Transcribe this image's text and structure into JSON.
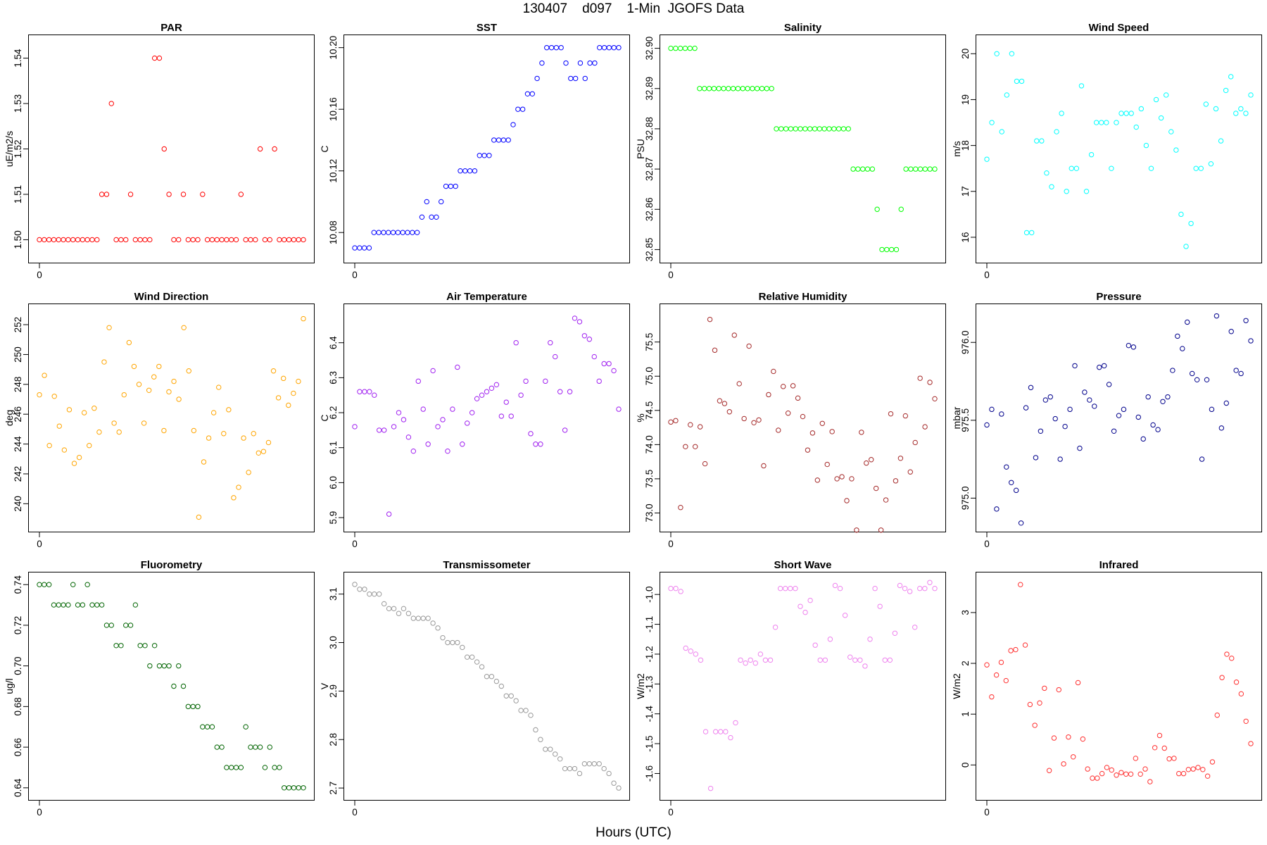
{
  "figure": {
    "title": "130407    d097    1-Min  JGOFS Data",
    "xlabel": "Hours (UTC)",
    "xtick_label": "0"
  },
  "chart_data": [
    {
      "type": "scatter",
      "title": "PAR",
      "ylabel": "uE/m2/s",
      "color": "#ff0000",
      "ylim": [
        1.4965,
        1.5435
      ],
      "yticks": [
        1.5,
        1.51,
        1.52,
        1.53,
        1.54
      ],
      "ytick_labels": [
        "1.50",
        "1.51",
        "1.52",
        "1.53",
        "1.54"
      ],
      "values": [
        1.5,
        1.5,
        1.5,
        1.5,
        1.5,
        1.5,
        1.5,
        1.5,
        1.5,
        1.5,
        1.5,
        1.5,
        1.5,
        1.51,
        1.51,
        1.53,
        1.5,
        1.5,
        1.5,
        1.51,
        1.5,
        1.5,
        1.5,
        1.5,
        1.54,
        1.54,
        1.52,
        1.51,
        1.5,
        1.5,
        1.51,
        1.5,
        1.5,
        1.5,
        1.51,
        1.5,
        1.5,
        1.5,
        1.5,
        1.5,
        1.5,
        1.5,
        1.51,
        1.5,
        1.5,
        1.5,
        1.52,
        1.5,
        1.5,
        1.52,
        1.5,
        1.5,
        1.5,
        1.5,
        1.5,
        1.5
      ]
    },
    {
      "type": "scatter",
      "title": "SST",
      "ylabel": "C",
      "color": "#0000ff",
      "ylim": [
        10.065,
        10.2035
      ],
      "yticks": [
        10.08,
        10.12,
        10.16,
        10.2
      ],
      "ytick_labels": [
        "10.08",
        "10.12",
        "10.16",
        "10.20"
      ],
      "values": [
        10.07,
        10.07,
        10.07,
        10.07,
        10.08,
        10.08,
        10.08,
        10.08,
        10.08,
        10.08,
        10.08,
        10.08,
        10.08,
        10.08,
        10.09,
        10.1,
        10.09,
        10.09,
        10.1,
        10.11,
        10.11,
        10.11,
        10.12,
        10.12,
        10.12,
        10.12,
        10.13,
        10.13,
        10.13,
        10.14,
        10.14,
        10.14,
        10.14,
        10.15,
        10.16,
        10.16,
        10.17,
        10.17,
        10.18,
        10.19,
        10.2,
        10.2,
        10.2,
        10.2,
        10.19,
        10.18,
        10.18,
        10.19,
        10.18,
        10.19,
        10.19,
        10.2,
        10.2,
        10.2,
        10.2,
        10.2
      ]
    },
    {
      "type": "scatter",
      "title": "Salinity",
      "ylabel": "PSU",
      "color": "#00ff00",
      "ylim": [
        32.8485,
        32.9015
      ],
      "yticks": [
        32.85,
        32.86,
        32.87,
        32.88,
        32.89,
        32.9
      ],
      "ytick_labels": [
        "32.85",
        "32.86",
        "32.87",
        "32.88",
        "32.89",
        "32.90"
      ],
      "values": [
        32.9,
        32.9,
        32.9,
        32.9,
        32.9,
        32.9,
        32.89,
        32.89,
        32.89,
        32.89,
        32.89,
        32.89,
        32.89,
        32.89,
        32.89,
        32.89,
        32.89,
        32.89,
        32.89,
        32.89,
        32.89,
        32.89,
        32.88,
        32.88,
        32.88,
        32.88,
        32.88,
        32.88,
        32.88,
        32.88,
        32.88,
        32.88,
        32.88,
        32.88,
        32.88,
        32.88,
        32.88,
        32.88,
        32.87,
        32.87,
        32.87,
        32.87,
        32.87,
        32.86,
        32.85,
        32.85,
        32.85,
        32.85,
        32.86,
        32.87,
        32.87,
        32.87,
        32.87,
        32.87,
        32.87,
        32.87
      ]
    },
    {
      "type": "scatter",
      "title": "Wind Speed",
      "ylabel": "m/s",
      "color": "#00ffff",
      "ylim": [
        15.6,
        20.25
      ],
      "yticks": [
        16,
        17,
        18,
        19,
        20
      ],
      "ytick_labels": [
        "16",
        "17",
        "18",
        "19",
        "20"
      ],
      "values": [
        17.7,
        18.5,
        20.0,
        18.3,
        19.1,
        20.0,
        19.4,
        19.4,
        16.1,
        16.1,
        18.1,
        18.1,
        17.4,
        17.1,
        18.3,
        18.7,
        17.0,
        17.5,
        17.5,
        19.3,
        17.0,
        17.8,
        18.5,
        18.5,
        18.5,
        17.5,
        18.5,
        18.7,
        18.7,
        18.7,
        18.4,
        18.8,
        18.0,
        17.5,
        19.0,
        18.6,
        19.1,
        18.3,
        17.9,
        16.5,
        15.8,
        16.3,
        17.5,
        17.5,
        18.9,
        17.6,
        18.8,
        18.1,
        19.2,
        19.5,
        18.7,
        18.8,
        18.7,
        19.1
      ]
    },
    {
      "type": "scatter",
      "title": "Wind Direction",
      "ylabel": "deg",
      "color": "#ffa500",
      "ylim": [
        238.6,
        252.9
      ],
      "yticks": [
        240,
        242,
        244,
        246,
        248,
        250,
        252
      ],
      "ytick_labels": [
        "240",
        "242",
        "244",
        "246",
        "248",
        "250",
        "252"
      ],
      "values": [
        247.3,
        248.6,
        243.9,
        247.2,
        245.2,
        243.6,
        246.3,
        242.7,
        243.1,
        246.1,
        243.9,
        246.4,
        244.8,
        249.5,
        251.8,
        245.4,
        244.8,
        247.3,
        250.8,
        249.2,
        248.0,
        245.4,
        247.6,
        248.5,
        249.2,
        244.9,
        247.5,
        248.2,
        247.0,
        251.8,
        248.9,
        244.9,
        239.1,
        242.8,
        244.4,
        246.1,
        247.8,
        244.7,
        246.3,
        240.4,
        241.1,
        244.4,
        242.1,
        244.7,
        243.4,
        243.5,
        244.1,
        248.9,
        247.1,
        248.4,
        246.6,
        247.4,
        248.2,
        252.4
      ]
    },
    {
      "type": "scatter",
      "title": "Air Temperature",
      "ylabel": "C",
      "color": "#a020f0",
      "ylim": [
        5.88,
        6.49
      ],
      "yticks": [
        5.9,
        6.0,
        6.1,
        6.2,
        6.3,
        6.4
      ],
      "ytick_labels": [
        "5.9",
        "6.0",
        "6.1",
        "6.2",
        "6.3",
        "6.4"
      ],
      "values": [
        6.16,
        6.26,
        6.26,
        6.26,
        6.25,
        6.15,
        6.15,
        5.91,
        6.16,
        6.2,
        6.18,
        6.13,
        6.09,
        6.29,
        6.21,
        6.11,
        6.32,
        6.16,
        6.18,
        6.09,
        6.21,
        6.33,
        6.11,
        6.17,
        6.2,
        6.24,
        6.25,
        6.26,
        6.27,
        6.28,
        6.19,
        6.23,
        6.19,
        6.4,
        6.25,
        6.29,
        6.14,
        6.11,
        6.11,
        6.29,
        6.4,
        6.36,
        6.26,
        6.15,
        6.26,
        6.47,
        6.46,
        6.42,
        6.41,
        6.36,
        6.29,
        6.34,
        6.34,
        6.32,
        6.21
      ]
    },
    {
      "type": "scatter",
      "title": "Relative Humidity",
      "ylabel": "%",
      "color": "#a52a2a",
      "ylim": [
        72.83,
        75.95
      ],
      "yticks": [
        73.0,
        73.5,
        74.0,
        74.5,
        75.0,
        75.5
      ],
      "ytick_labels": [
        "73.0",
        "73.5",
        "74.0",
        "74.5",
        "75.0",
        "75.5"
      ],
      "values": [
        74.33,
        74.35,
        73.08,
        73.97,
        74.29,
        73.97,
        74.26,
        73.72,
        75.83,
        75.38,
        74.64,
        74.6,
        74.48,
        75.6,
        74.89,
        74.38,
        75.44,
        74.32,
        74.36,
        73.69,
        74.73,
        75.07,
        74.21,
        74.85,
        74.46,
        74.86,
        74.68,
        74.41,
        73.92,
        74.17,
        73.48,
        74.31,
        73.71,
        74.19,
        73.5,
        73.53,
        73.18,
        73.5,
        72.75,
        74.18,
        73.73,
        73.78,
        73.36,
        72.75,
        73.19,
        74.45,
        73.47,
        73.8,
        74.42,
        73.6,
        74.03,
        74.97,
        74.26,
        74.91,
        74.67
      ]
    },
    {
      "type": "scatter",
      "title": "Pressure",
      "ylabel": "mbar",
      "color": "#00008b",
      "ylim": [
        974.83,
        976.2
      ],
      "yticks": [
        975.0,
        975.5,
        976.0
      ],
      "ytick_labels": [
        "975.0",
        "975.5",
        "976.0"
      ],
      "values": [
        975.47,
        975.57,
        974.93,
        975.54,
        975.2,
        975.1,
        975.05,
        974.84,
        975.58,
        975.71,
        975.26,
        975.43,
        975.63,
        975.65,
        975.51,
        975.25,
        975.46,
        975.57,
        975.85,
        975.32,
        975.68,
        975.63,
        975.59,
        975.84,
        975.85,
        975.73,
        975.43,
        975.53,
        975.57,
        975.98,
        975.97,
        975.52,
        975.38,
        975.65,
        975.47,
        975.44,
        975.62,
        975.65,
        975.82,
        976.04,
        975.96,
        976.13,
        975.8,
        975.76,
        975.25,
        975.76,
        975.57,
        976.17,
        975.45,
        975.61,
        976.07,
        975.82,
        975.8,
        976.14,
        976.01
      ]
    },
    {
      "type": "scatter",
      "title": "Fluorometry",
      "ylabel": "ug/l",
      "color": "#006400",
      "ylim": [
        0.6375,
        0.7425
      ],
      "yticks": [
        0.64,
        0.66,
        0.68,
        0.7,
        0.72,
        0.74
      ],
      "ytick_labels": [
        "0.64",
        "0.66",
        "0.68",
        "0.70",
        "0.72",
        "0.74"
      ],
      "values": [
        0.74,
        0.74,
        0.74,
        0.73,
        0.73,
        0.73,
        0.73,
        0.74,
        0.73,
        0.73,
        0.74,
        0.73,
        0.73,
        0.73,
        0.72,
        0.72,
        0.71,
        0.71,
        0.72,
        0.72,
        0.73,
        0.71,
        0.71,
        0.7,
        0.71,
        0.7,
        0.7,
        0.7,
        0.69,
        0.7,
        0.69,
        0.68,
        0.68,
        0.68,
        0.67,
        0.67,
        0.67,
        0.66,
        0.66,
        0.65,
        0.65,
        0.65,
        0.65,
        0.67,
        0.66,
        0.66,
        0.66,
        0.65,
        0.66,
        0.65,
        0.65,
        0.64,
        0.64,
        0.64,
        0.64,
        0.64
      ]
    },
    {
      "type": "scatter",
      "title": "Transmissometer",
      "ylabel": "V",
      "color": "#999999",
      "ylim": [
        2.69,
        3.13
      ],
      "yticks": [
        2.7,
        2.8,
        2.9,
        3.0,
        3.1
      ],
      "ytick_labels": [
        "2.7",
        "2.8",
        "2.9",
        "3.0",
        "3.1"
      ],
      "values": [
        3.12,
        3.11,
        3.11,
        3.1,
        3.1,
        3.1,
        3.08,
        3.07,
        3.07,
        3.06,
        3.07,
        3.06,
        3.05,
        3.05,
        3.05,
        3.05,
        3.04,
        3.03,
        3.01,
        3.0,
        3.0,
        3.0,
        2.99,
        2.97,
        2.97,
        2.96,
        2.95,
        2.93,
        2.93,
        2.92,
        2.91,
        2.89,
        2.89,
        2.88,
        2.86,
        2.86,
        2.85,
        2.82,
        2.8,
        2.78,
        2.78,
        2.77,
        2.76,
        2.74,
        2.74,
        2.74,
        2.73,
        2.75,
        2.75,
        2.75,
        2.75,
        2.74,
        2.73,
        2.71,
        2.7
      ]
    },
    {
      "type": "scatter",
      "title": "Short Wave",
      "ylabel": "W/m2",
      "color": "#ee82ee",
      "ylim": [
        -1.665,
        -0.95
      ],
      "yticks": [
        -1.6,
        -1.5,
        -1.4,
        -1.3,
        -1.2,
        -1.1,
        -1.0
      ],
      "ytick_labels": [
        "-1.6",
        "-1.5",
        "-1.4",
        "-1.3",
        "-1.2",
        "-1.1",
        "-1.0"
      ],
      "values": [
        -0.98,
        -0.98,
        -0.99,
        -1.18,
        -1.19,
        -1.2,
        -1.22,
        -1.46,
        -1.65,
        -1.46,
        -1.46,
        -1.46,
        -1.48,
        -1.43,
        -1.22,
        -1.23,
        -1.22,
        -1.23,
        -1.2,
        -1.22,
        -1.22,
        -1.11,
        -0.98,
        -0.98,
        -0.98,
        -0.98,
        -1.04,
        -1.06,
        -1.02,
        -1.17,
        -1.22,
        -1.22,
        -1.15,
        -0.97,
        -0.98,
        -1.07,
        -1.21,
        -1.22,
        -1.22,
        -1.24,
        -1.15,
        -0.98,
        -1.04,
        -1.22,
        -1.22,
        -1.13,
        -0.97,
        -0.98,
        -0.99,
        -1.11,
        -0.98,
        -0.98,
        -0.96,
        -0.98
      ]
    },
    {
      "type": "scatter",
      "title": "Infrared",
      "ylabel": "W/m2",
      "color": "#ff3030",
      "ylim": [
        -0.55,
        3.65
      ],
      "yticks": [
        0,
        1,
        2,
        3
      ],
      "ytick_labels": [
        "0",
        "1",
        "2",
        "3"
      ],
      "values": [
        1.97,
        1.34,
        1.77,
        2.02,
        1.66,
        2.25,
        2.27,
        3.55,
        2.36,
        1.19,
        0.78,
        1.22,
        1.51,
        -0.11,
        0.53,
        1.48,
        0.02,
        0.55,
        0.16,
        1.62,
        0.51,
        -0.08,
        -0.26,
        -0.26,
        -0.17,
        -0.05,
        -0.1,
        -0.2,
        -0.15,
        -0.18,
        -0.18,
        0.13,
        -0.18,
        -0.08,
        -0.33,
        0.34,
        0.58,
        0.33,
        0.12,
        0.13,
        -0.17,
        -0.17,
        -0.09,
        -0.08,
        -0.05,
        -0.09,
        -0.22,
        0.06,
        0.98,
        1.72,
        2.18,
        2.1,
        1.63,
        1.4,
        0.86,
        0.42
      ]
    }
  ]
}
